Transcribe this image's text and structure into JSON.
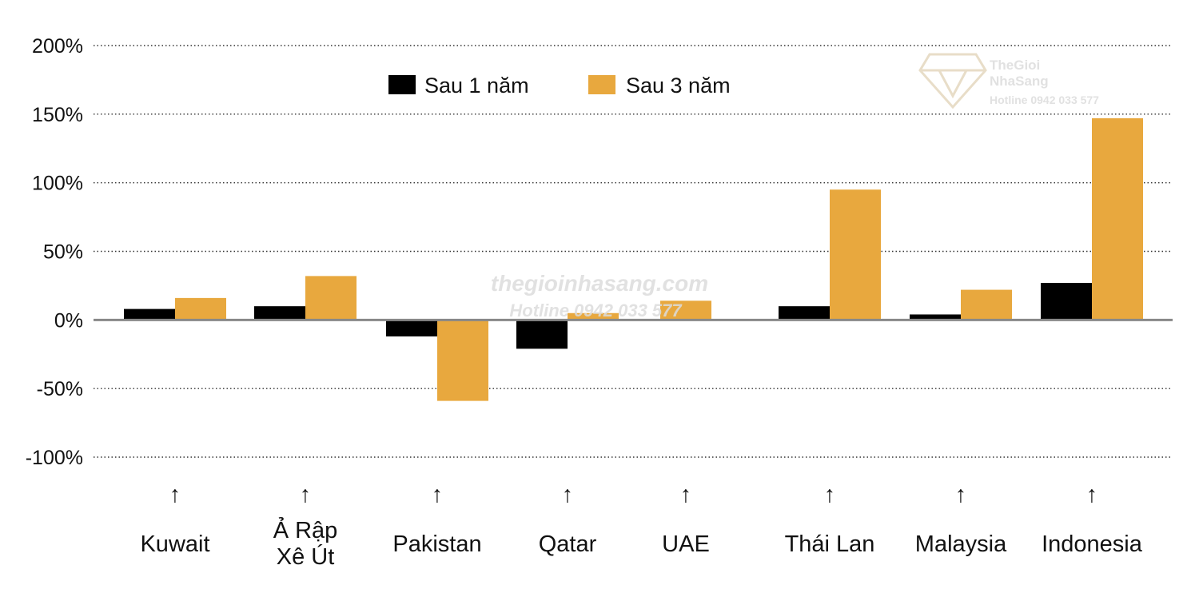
{
  "chart_data": {
    "type": "bar",
    "categories": [
      "Kuwait",
      "Ả Rập\nXê Út",
      "Pakistan",
      "Qatar",
      "UAE",
      "Thái Lan",
      "Malaysia",
      "Indonesia"
    ],
    "series": [
      {
        "name": "Sau 1 năm",
        "values": [
          8,
          10,
          -12,
          -21,
          null,
          10,
          4,
          27
        ],
        "color": "#000000"
      },
      {
        "name": "Sau 3 năm",
        "values": [
          16,
          32,
          -59,
          5,
          14,
          95,
          22,
          147
        ],
        "color": "#E8A83E"
      }
    ],
    "y_ticks": [
      200,
      150,
      100,
      50,
      0,
      -50,
      -100
    ],
    "y_tick_labels": [
      "200%",
      "150%",
      "100%",
      "50%",
      "0%",
      "-50%",
      "-100%"
    ],
    "ylim": [
      -100,
      200
    ],
    "grid": "dotted horizontal",
    "legend_position": "top-center",
    "category_marker": "↑",
    "zero_line_color": "#888888"
  },
  "watermark": {
    "center_line1": "thegioinhasang.com",
    "center_line2": "Hotline 0942 033 577",
    "corner_brand_line1": "TheGioi",
    "corner_brand_line2": "NhaSang",
    "corner_hotline": "Hotline 0942 033 577"
  }
}
